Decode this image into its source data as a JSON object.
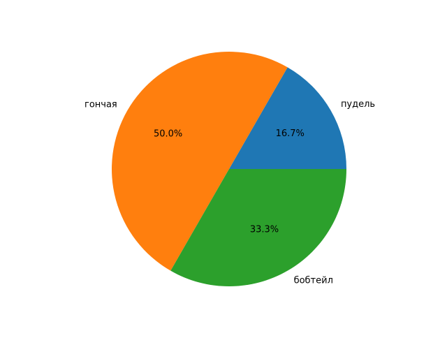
{
  "chart_data": {
    "type": "pie",
    "categories": [
      "пудель",
      "гончая",
      "бобтейл"
    ],
    "values": [
      16.7,
      50.0,
      33.3
    ],
    "percent_labels": [
      "16.7%",
      "50.0%",
      "33.3%"
    ],
    "colors": [
      "#1f77b4",
      "#ff7f0e",
      "#2ca02c"
    ],
    "start_angle_deg": 0,
    "direction": "counterclockwise",
    "legend": "none"
  }
}
